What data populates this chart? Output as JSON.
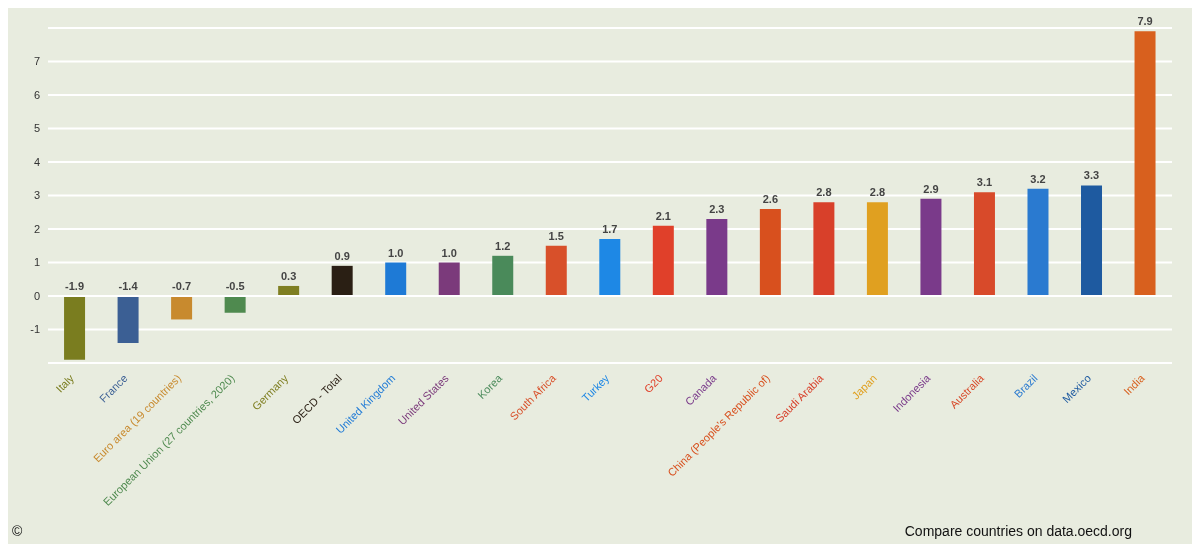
{
  "chart_data": {
    "type": "bar",
    "categories": [
      "Italy",
      "France",
      "Euro area (19 countries)",
      "European Union (27 countries, 2020)",
      "Germany",
      "OECD - Total",
      "United Kingdom",
      "United States",
      "Korea",
      "South Africa",
      "Turkey",
      "G20",
      "Canada",
      "China (People's Republic of)",
      "Saudi Arabia",
      "Japan",
      "Indonesia",
      "Australia",
      "Brazil",
      "Mexico",
      "India"
    ],
    "values": [
      -1.9,
      -1.4,
      -0.7,
      -0.5,
      0.3,
      0.9,
      1.0,
      1.0,
      1.2,
      1.5,
      1.7,
      2.1,
      2.3,
      2.6,
      2.8,
      2.8,
      2.9,
      3.1,
      3.2,
      3.3,
      7.9
    ],
    "value_labels": [
      "-1.9",
      "-1.4",
      "-0.7",
      "-0.5",
      "0.3",
      "0.9",
      "1.0",
      "1.0",
      "1.2",
      "1.5",
      "1.7",
      "2.1",
      "2.3",
      "2.6",
      "2.8",
      "2.8",
      "2.9",
      "3.1",
      "3.2",
      "3.3",
      "7.9"
    ],
    "colors": [
      "#7a7d1f",
      "#3b5f94",
      "#c88a2e",
      "#4f8a4f",
      "#7f7f22",
      "#2a1f14",
      "#1e7ad6",
      "#7b3a7b",
      "#4a8a5a",
      "#d8502a",
      "#1e88e5",
      "#e0402a",
      "#7a3a8a",
      "#d8501e",
      "#d8402a",
      "#e0a020",
      "#7a3a8a",
      "#d84a2a",
      "#2a7ad0",
      "#1e5aa0",
      "#d8601e"
    ],
    "ylim": [
      -2,
      8
    ],
    "yticks": [
      -1,
      0,
      1,
      2,
      3,
      4,
      5,
      6,
      7
    ],
    "grid": "y",
    "annotations": [
      "©",
      "Compare countries on data.oecd.org"
    ]
  }
}
